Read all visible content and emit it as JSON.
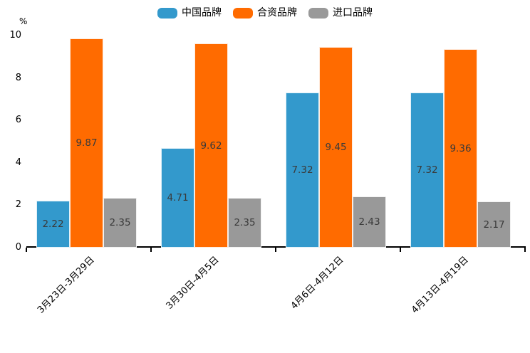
{
  "chart_data": {
    "type": "bar",
    "title": "",
    "ylabel": "%",
    "xlabel": "",
    "ylim": [
      0,
      10
    ],
    "yticks": [
      0,
      2,
      4,
      6,
      8,
      10
    ],
    "grid": false,
    "legend_position": "top",
    "categories": [
      "3月23日-3月29日",
      "3月30日-4月5日",
      "4月6日-4月12日",
      "4月13日-4月19日"
    ],
    "series": [
      {
        "id": "china-brand",
        "name": "中国品牌",
        "color": "#3399CC",
        "values": [
          2.22,
          4.71,
          7.32,
          7.32
        ]
      },
      {
        "id": "joint-venture-brand",
        "name": "合资品牌",
        "color": "#FF6B00",
        "values": [
          9.87,
          9.62,
          9.45,
          9.36
        ]
      },
      {
        "id": "import-brand",
        "name": "进口品牌",
        "color": "#999999",
        "values": [
          2.35,
          2.35,
          2.43,
          2.17
        ]
      }
    ],
    "value_label_color": "#3a3a3a",
    "axis_color": "#000000"
  }
}
